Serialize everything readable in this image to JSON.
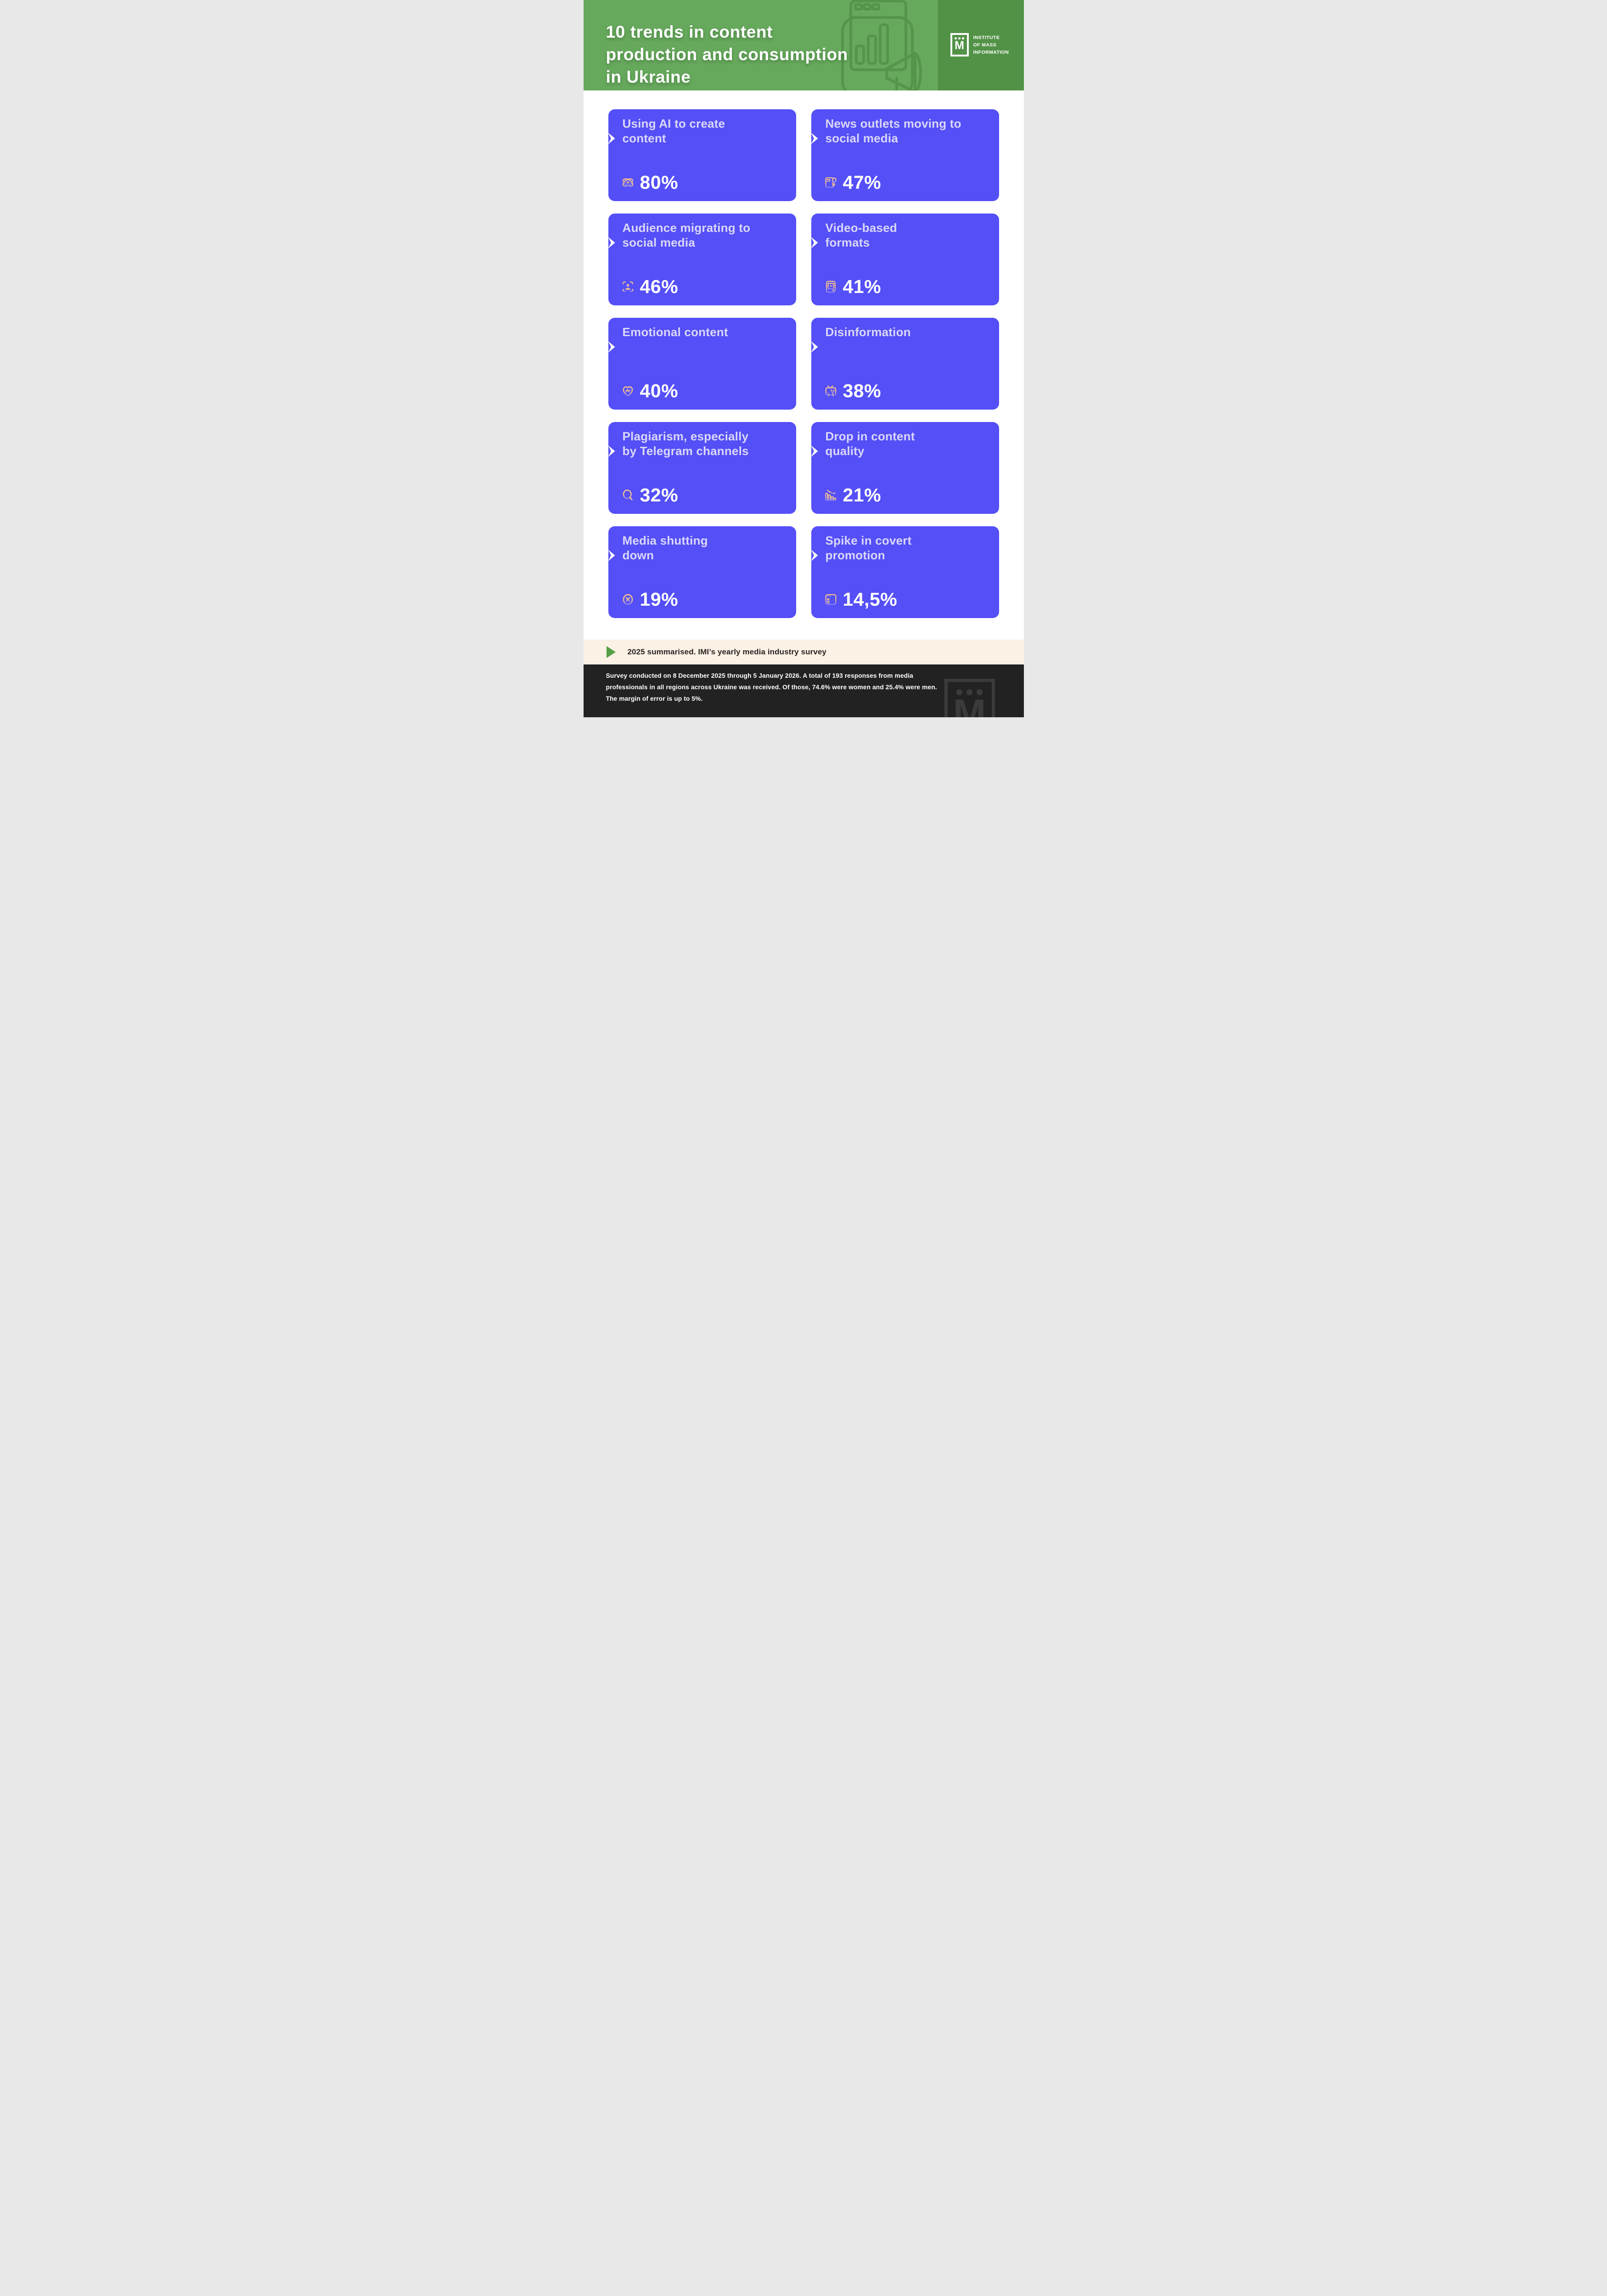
{
  "header": {
    "title_lines": [
      "10 trends in content",
      "production and consumption",
      "in Ukraine"
    ],
    "logo": {
      "mark": "M",
      "org_lines": [
        "INSTITUTE",
        "OF MASS",
        "INFORMATION"
      ]
    },
    "illustration": "monitor-bar-chart-megaphone-illustration",
    "colors": {
      "green": "#66A85C",
      "green_dark": "#529247"
    }
  },
  "cards": [
    {
      "title_lines": [
        "Using AI to create",
        "content"
      ],
      "value": "80%",
      "icon": "ai-sparkle-orbit-icon"
    },
    {
      "title_lines": [
        "News outlets moving to",
        "social media"
      ],
      "value": "47%",
      "icon": "newspaper-flash-icon"
    },
    {
      "title_lines": [
        "Audience migrating to",
        "social media"
      ],
      "value": "46%",
      "icon": "person-focus-icon"
    },
    {
      "title_lines": [
        "Video-based",
        "formats"
      ],
      "value": "41%",
      "icon": "video-player-icon"
    },
    {
      "title_lines": [
        "Emotional content"
      ],
      "value": "40%",
      "icon": "heart-pulse-icon"
    },
    {
      "title_lines": [
        "Disinformation"
      ],
      "value": "38%",
      "icon": "tv-angry-face-icon"
    },
    {
      "title_lines": [
        "Plagiarism, especially",
        "by Telegram channels"
      ],
      "value": "32%",
      "icon": "magnifier-icon"
    },
    {
      "title_lines": [
        "Drop in content",
        "quality"
      ],
      "value": "21%",
      "icon": "declining-chart-icon"
    },
    {
      "title_lines": [
        "Media shutting",
        "down"
      ],
      "value": "19%",
      "icon": "circle-x-icon"
    },
    {
      "title_lines": [
        "Spike in covert",
        "promotion"
      ],
      "value": "14,5%",
      "icon": "browser-list-icon"
    }
  ],
  "card_style": {
    "background": "#544FF7",
    "title_color": "#DAD7F8",
    "value_color": "#FFFFFF",
    "icon_gradient": [
      "#F5C28D",
      "#8B82F4"
    ]
  },
  "summary_band": {
    "label": "2025 summarised. IMI’s yearly media industry survey",
    "icon": "play-triangle-icon",
    "background": "#FBF1E5",
    "accent": "#55A047"
  },
  "footer": {
    "background": "#232222",
    "lines": [
      "Survey conducted on 8 December 2025 through 5 January 2026. A total of 193 responses from media",
      "professionals in all regions across Ukraine was received. Of those, 74.6% were women and 25.4% were men.",
      "The margin of error is up to 5%."
    ],
    "watermark": "imi-logo-watermark"
  }
}
